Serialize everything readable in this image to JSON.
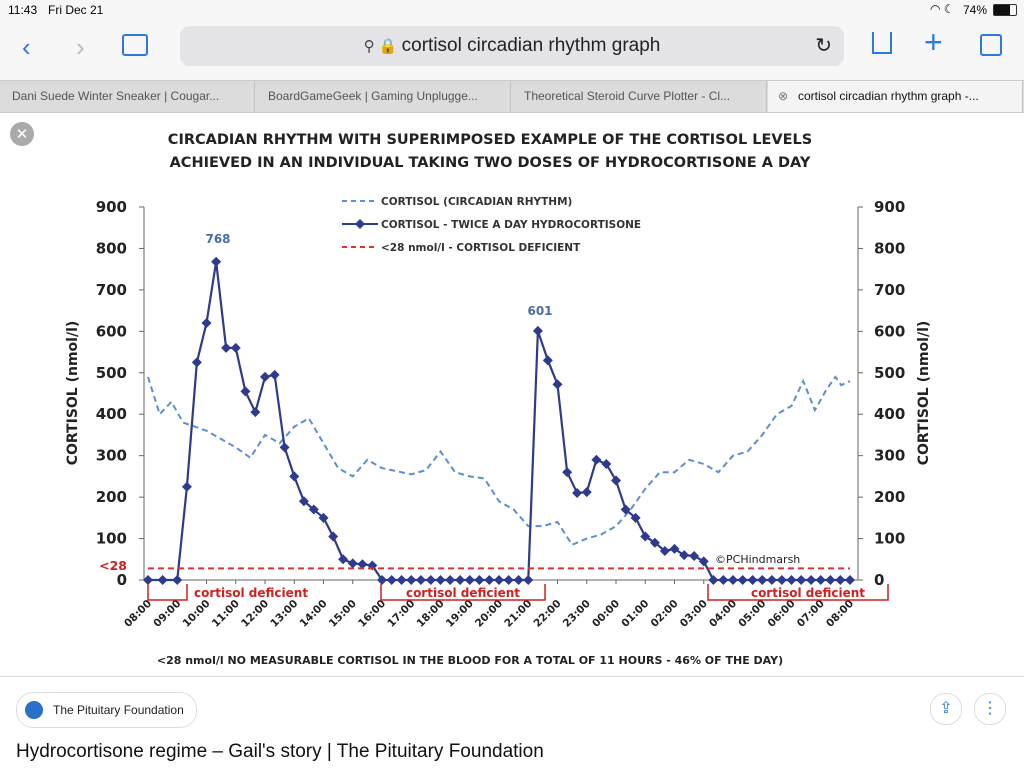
{
  "status_bar": {
    "time": "11:43",
    "date": "Fri Dec 21",
    "battery": "74%"
  },
  "toolbar": {
    "url": "cortisol circadian rhythm graph"
  },
  "tabs": [
    "Dani Suede Winter Sneaker | Cougar...",
    "BoardGameGeek | Gaming Unplugge...",
    "Theoretical Steroid Curve Plotter - Cl...",
    "cortisol circadian rhythm graph -..."
  ],
  "chart_data": {
    "type": "line",
    "title": [
      "CIRCADIAN RHYTHM WITH SUPERIMPOSED EXAMPLE OF THE CORTISOL  LEVELS",
      "ACHIEVED IN AN INDIVIDUAL TAKING TWO DOSES OF HYDROCORTISONE A DAY"
    ],
    "y_label": "CORTISOL (nmol/l)",
    "y2_label": "CORTISOL (nmol/l)",
    "xlim": [
      0,
      24
    ],
    "xticks": [
      {
        "value": 0,
        "label": "08:00"
      },
      {
        "value": 1,
        "label": "09:00"
      },
      {
        "value": 2,
        "label": "10:00"
      },
      {
        "value": 3,
        "label": "11:00"
      },
      {
        "value": 4,
        "label": "12:00"
      },
      {
        "value": 5,
        "label": "13:00"
      },
      {
        "value": 6,
        "label": "14:00"
      },
      {
        "value": 7,
        "label": "15:00"
      },
      {
        "value": 8,
        "label": "16:00"
      },
      {
        "value": 9,
        "label": "17:00"
      },
      {
        "value": 10,
        "label": "18:00"
      },
      {
        "value": 11,
        "label": "19:00"
      },
      {
        "value": 12,
        "label": "20:00"
      },
      {
        "value": 13,
        "label": "21:00"
      },
      {
        "value": 14,
        "label": "22:00"
      },
      {
        "value": 15,
        "label": "23:00"
      },
      {
        "value": 16,
        "label": "00:00"
      },
      {
        "value": 17,
        "label": "01:00"
      },
      {
        "value": 18,
        "label": "02:00"
      },
      {
        "value": 19,
        "label": "03:00"
      },
      {
        "value": 20,
        "label": "04:00"
      },
      {
        "value": 21,
        "label": "05:00"
      },
      {
        "value": 22,
        "label": "06:00"
      },
      {
        "value": 23,
        "label": "07:00"
      },
      {
        "value": 24,
        "label": "08:00"
      }
    ],
    "ylim": [
      0,
      900
    ],
    "yticks": [
      0,
      100,
      200,
      300,
      400,
      500,
      600,
      700,
      800,
      900
    ],
    "y2lim": [
      0,
      900
    ],
    "y2ticks": [
      0,
      100,
      200,
      300,
      400,
      500,
      600,
      700,
      800,
      900
    ],
    "series": [
      {
        "name": "CORTISOL (CIRCADIAN RHYTHM)",
        "color": "#5b8fd0",
        "style": "dashed",
        "x": [
          0,
          0.4,
          0.8,
          1.2,
          2,
          3,
          3.5,
          4,
          4.5,
          5,
          5.5,
          6,
          6.5,
          7,
          7.5,
          8,
          9,
          9.5,
          10,
          10.5,
          11,
          11.5,
          12,
          12.5,
          13,
          13.5,
          14,
          14.5,
          15,
          15.5,
          16,
          16.5,
          17,
          17.5,
          18,
          18.5,
          19,
          19.5,
          20,
          20.5,
          21,
          21.5,
          22,
          22.4,
          22.8,
          23.2,
          23.5,
          23.7,
          24
        ],
        "values": [
          490,
          400,
          430,
          380,
          360,
          320,
          295,
          350,
          330,
          370,
          390,
          330,
          270,
          250,
          290,
          270,
          255,
          265,
          310,
          260,
          250,
          245,
          190,
          170,
          130,
          130,
          140,
          85,
          100,
          110,
          130,
          170,
          220,
          260,
          260,
          290,
          280,
          260,
          300,
          310,
          350,
          400,
          420,
          480,
          410,
          460,
          490,
          470,
          480
        ]
      },
      {
        "name": "CORTISOL - TWICE A DAY HYDROCORTISONE",
        "color": "#2e3a8c",
        "style": "solid",
        "marker": "diamond",
        "x": [
          0,
          0.5,
          1,
          1.33,
          1.67,
          2,
          2.33,
          2.67,
          3,
          3.33,
          3.67,
          4,
          4.33,
          4.67,
          5,
          5.33,
          5.67,
          6,
          6.33,
          6.67,
          7,
          7.33,
          7.67,
          8,
          8.33,
          8.67,
          9,
          9.33,
          9.67,
          10,
          10.33,
          10.67,
          11,
          11.33,
          11.67,
          12,
          12.33,
          12.67,
          13,
          13.33,
          13.67,
          14,
          14.33,
          14.67,
          15,
          15.33,
          15.67,
          16,
          16.33,
          16.67,
          17,
          17.33,
          17.67,
          18,
          18.33,
          18.67,
          19,
          19.33,
          19.67,
          20,
          20.33,
          20.67,
          21,
          21.33,
          21.67,
          22,
          22.33,
          22.67,
          23,
          23.33,
          23.67,
          24
        ],
        "values": [
          0,
          0,
          0,
          225,
          525,
          620,
          768,
          560,
          560,
          455,
          405,
          490,
          495,
          320,
          250,
          190,
          170,
          150,
          105,
          50,
          40,
          38,
          35,
          0,
          0,
          0,
          0,
          0,
          0,
          0,
          0,
          0,
          0,
          0,
          0,
          0,
          0,
          0,
          0,
          601,
          530,
          472,
          260,
          210,
          212,
          290,
          280,
          240,
          170,
          150,
          105,
          90,
          70,
          75,
          60,
          58,
          45,
          0,
          0,
          0,
          0,
          0,
          0,
          0,
          0,
          0,
          0,
          0,
          0,
          0,
          0,
          0
        ]
      },
      {
        "name": "<28 nmol/l - CORTISOL DEFICIENT",
        "color": "#e03030",
        "style": "dashed",
        "x": [
          0,
          24
        ],
        "values": [
          28,
          28
        ]
      }
    ],
    "annotations": {
      "peak1": "768",
      "peak2": "601",
      "threshold": "<28",
      "deficient": [
        "cortisol deficient",
        "cortisol deficient",
        "cortisol deficient"
      ],
      "credit": "©PCHindmarsh",
      "footnote": "<28 nmol/l NO MEASURABLE CORTISOL IN THE BLOOD  FOR A TOTAL OF 11 HOURS - 46% OF THE DAY)"
    }
  },
  "footer": {
    "site": "The Pituitary Foundation",
    "page_title": "Hydrocortisone regime – Gail's story | The Pituitary Foundation"
  }
}
